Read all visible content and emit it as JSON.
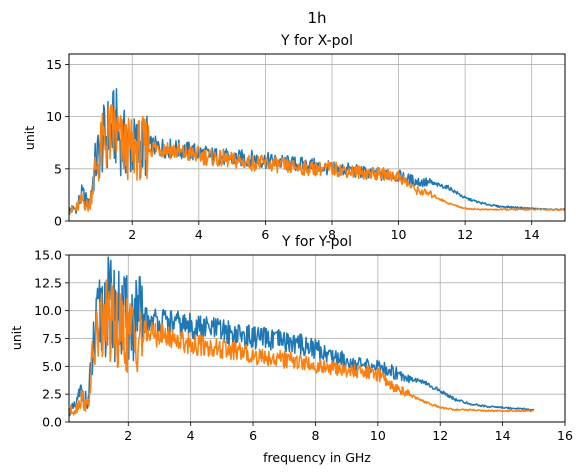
{
  "figure_title": "1h",
  "chart_data": [
    {
      "type": "line",
      "title": "Y for X-pol",
      "xlabel": "",
      "ylabel": "unit",
      "xlim": [
        0.1,
        15
      ],
      "ylim": [
        0,
        16
      ],
      "xticks": [
        2,
        4,
        6,
        8,
        10,
        12,
        14
      ],
      "yticks": [
        0,
        5,
        10,
        15
      ],
      "grid": true,
      "series": [
        {
          "color": "#1f77b4",
          "x": [
            0.1,
            0.3,
            0.5,
            0.7,
            0.9,
            1.1,
            1.3,
            1.5,
            1.7,
            2.0,
            2.5,
            3.0,
            3.5,
            4.0,
            4.5,
            5.0,
            5.5,
            6.0,
            6.5,
            7.0,
            7.5,
            8.0,
            8.5,
            9.0,
            9.5,
            10.0,
            10.5,
            11.0,
            11.5,
            12.0,
            12.5,
            13.0,
            13.5,
            14.0,
            14.5,
            15.0
          ],
          "values": [
            1.0,
            1.2,
            2.5,
            1.5,
            5.5,
            7.5,
            8.5,
            9.0,
            7.5,
            7.0,
            7.2,
            7.0,
            6.8,
            6.5,
            6.2,
            6.0,
            6.0,
            5.8,
            5.6,
            5.4,
            5.3,
            5.0,
            4.9,
            4.6,
            4.4,
            4.3,
            3.8,
            3.6,
            3.2,
            2.2,
            1.7,
            1.4,
            1.3,
            1.2,
            1.1,
            1.1
          ]
        },
        {
          "color": "#ff7f0e",
          "x": [
            0.1,
            0.3,
            0.5,
            0.7,
            0.9,
            1.1,
            1.3,
            1.5,
            1.7,
            2.0,
            2.5,
            3.0,
            3.5,
            4.0,
            4.5,
            5.0,
            5.5,
            6.0,
            6.5,
            7.0,
            7.5,
            8.0,
            8.5,
            9.0,
            9.5,
            10.0,
            10.5,
            11.0,
            11.5,
            12.0,
            12.5,
            13.0,
            13.5,
            14.0,
            14.5,
            15.0
          ],
          "values": [
            1.0,
            1.1,
            2.0,
            1.3,
            5.0,
            7.2,
            8.0,
            8.5,
            7.0,
            6.8,
            7.0,
            7.0,
            6.5,
            6.3,
            6.0,
            5.8,
            5.6,
            5.5,
            5.3,
            5.1,
            5.0,
            5.0,
            4.8,
            4.6,
            4.5,
            4.3,
            3.0,
            2.5,
            1.7,
            1.2,
            1.1,
            1.1,
            1.1,
            1.1,
            1.1,
            1.1
          ]
        }
      ]
    },
    {
      "type": "line",
      "title": "Y for Y-pol",
      "xlabel": "frequency in GHz",
      "ylabel": "unit",
      "xlim": [
        0.1,
        16
      ],
      "ylim": [
        0,
        15
      ],
      "xticks": [
        2,
        4,
        6,
        8,
        10,
        12,
        14,
        16
      ],
      "yticks": [
        0.0,
        2.5,
        5.0,
        7.5,
        10.0,
        12.5,
        15.0
      ],
      "ytick_labels": [
        "0.0",
        "2.5",
        "5.0",
        "7.5",
        "10.0",
        "12.5",
        "15.0"
      ],
      "grid": true,
      "series": [
        {
          "color": "#1f77b4",
          "x": [
            0.1,
            0.3,
            0.5,
            0.7,
            0.9,
            1.1,
            1.3,
            1.5,
            1.7,
            2.0,
            2.5,
            3.0,
            3.5,
            4.0,
            4.5,
            5.0,
            5.5,
            6.0,
            6.5,
            7.0,
            7.5,
            8.0,
            8.5,
            9.0,
            9.5,
            10.0,
            10.5,
            11.0,
            11.5,
            12.0,
            12.5,
            13.0,
            13.5,
            14.0,
            14.5,
            15.0
          ],
          "values": [
            1.0,
            1.3,
            2.8,
            1.5,
            7.0,
            9.5,
            10.5,
            10.0,
            9.5,
            9.0,
            9.2,
            9.0,
            8.8,
            8.6,
            8.4,
            8.2,
            7.8,
            7.6,
            7.4,
            7.2,
            7.0,
            6.6,
            6.0,
            5.5,
            5.0,
            5.0,
            4.5,
            4.0,
            3.5,
            2.8,
            2.0,
            1.6,
            1.4,
            1.3,
            1.2,
            1.1
          ]
        },
        {
          "color": "#ff7f0e",
          "x": [
            0.1,
            0.3,
            0.5,
            0.7,
            0.9,
            1.1,
            1.3,
            1.5,
            1.7,
            2.0,
            2.5,
            3.0,
            3.5,
            4.0,
            4.5,
            5.0,
            5.5,
            6.0,
            6.5,
            7.0,
            7.5,
            8.0,
            8.5,
            9.0,
            9.5,
            10.0,
            10.5,
            11.0,
            11.5,
            12.0,
            12.5,
            13.0,
            13.5,
            14.0,
            14.5,
            15.0
          ],
          "values": [
            1.0,
            1.1,
            2.2,
            1.3,
            6.5,
            8.5,
            9.0,
            8.5,
            8.0,
            7.8,
            8.0,
            7.8,
            7.5,
            7.0,
            6.8,
            6.5,
            6.3,
            6.0,
            5.8,
            5.6,
            5.4,
            5.0,
            4.8,
            4.6,
            4.5,
            4.3,
            3.2,
            2.5,
            1.8,
            1.3,
            1.1,
            1.1,
            1.0,
            1.0,
            1.0,
            1.0
          ]
        }
      ]
    }
  ]
}
